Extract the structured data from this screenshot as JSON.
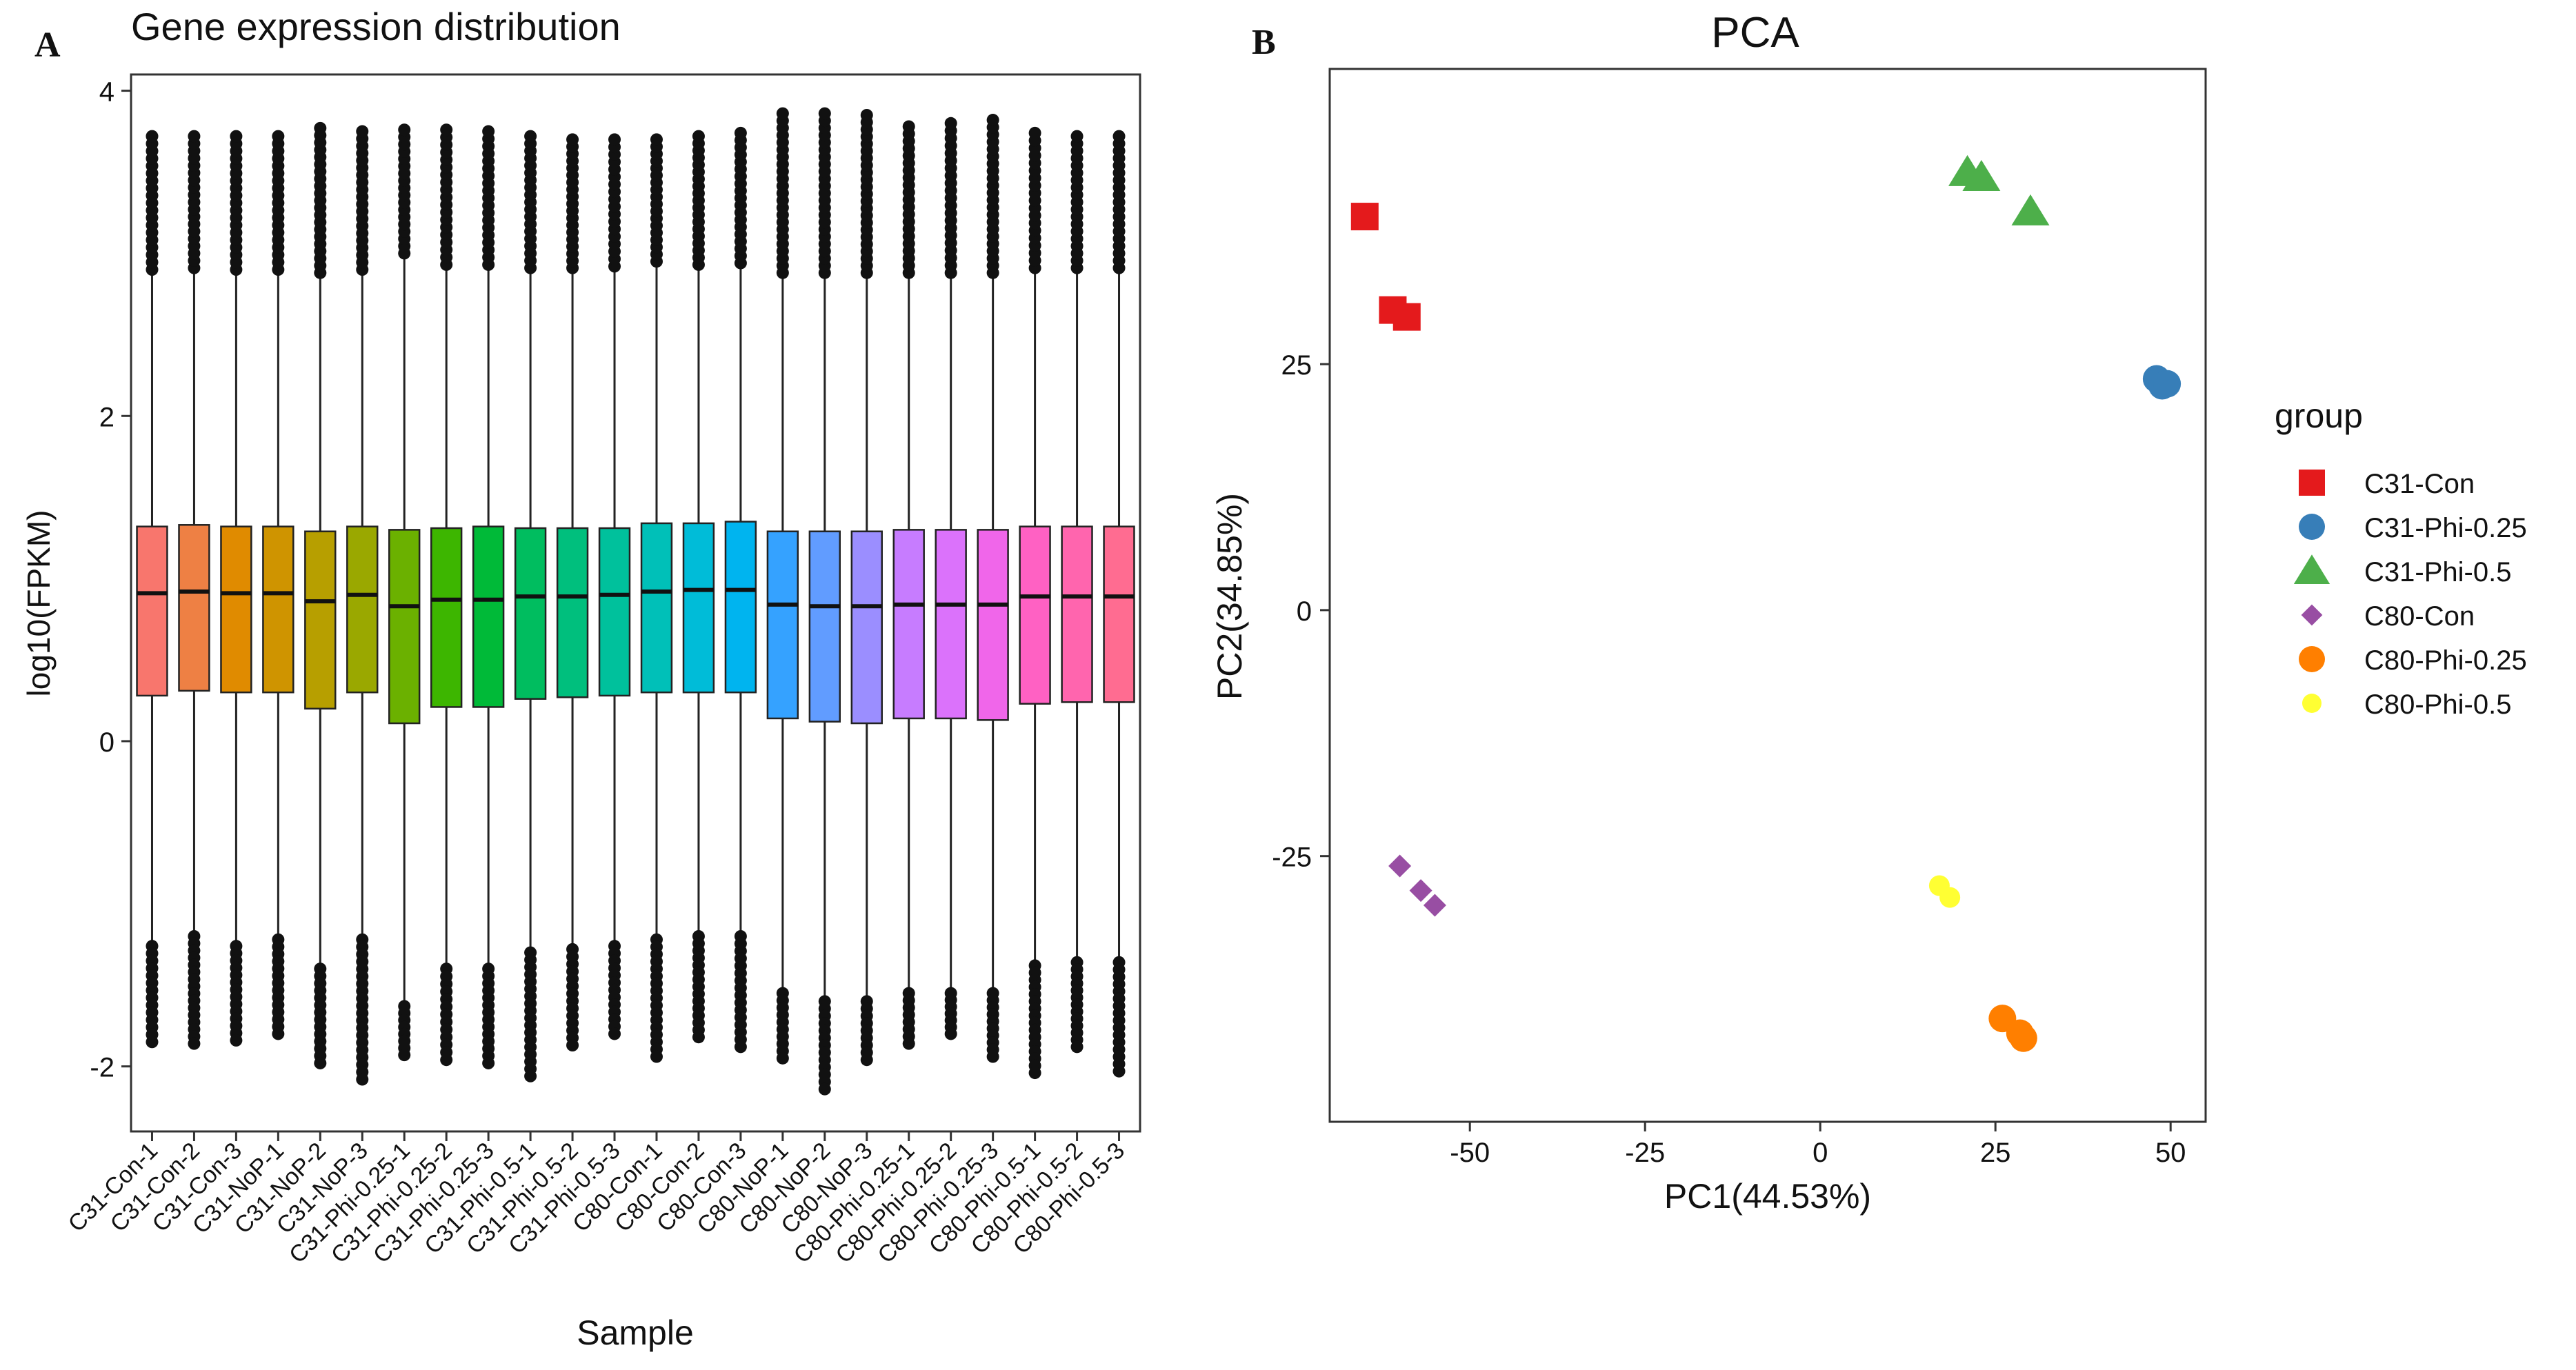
{
  "figure": {
    "panel_a_letter": "A",
    "panel_b_letter": "B"
  },
  "chart_data": [
    {
      "type": "box",
      "title": "Gene expression distribution",
      "xlabel": "Sample",
      "ylabel": "log10(FPKM)",
      "ylim": [
        -2.4,
        4.1
      ],
      "yticks": [
        "-2",
        "0",
        "2",
        "4"
      ],
      "ytick_values": [
        -2,
        0,
        2,
        4
      ],
      "categories": [
        "C31-Con-1",
        "C31-Con-2",
        "C31-Con-3",
        "C31-NoP-1",
        "C31-NoP-2",
        "C31-NoP-3",
        "C31-Phi-0.25-1",
        "C31-Phi-0.25-2",
        "C31-Phi-0.25-3",
        "C31-Phi-0.5-1",
        "C31-Phi-0.5-2",
        "C31-Phi-0.5-3",
        "C80-Con-1",
        "C80-Con-2",
        "C80-Con-3",
        "C80-NoP-1",
        "C80-NoP-2",
        "C80-NoP-3",
        "C80-Phi-0.25-1",
        "C80-Phi-0.25-2",
        "C80-Phi-0.25-3",
        "C80-Phi-0.5-1",
        "C80-Phi-0.5-2",
        "C80-Phi-0.5-3"
      ],
      "colors": [
        "#F8766D",
        "#EE8044",
        "#E08B00",
        "#CF9400",
        "#B79F00",
        "#9AA800",
        "#6BB100",
        "#3DB600",
        "#00BA38",
        "#00BD5F",
        "#00BF7D",
        "#00C19C",
        "#00C0B8",
        "#00BCD8",
        "#00B4EF",
        "#35A2FF",
        "#619CFF",
        "#9B8EFF",
        "#C77CFF",
        "#DB72FB",
        "#F066EA",
        "#FF61C3",
        "#FF65AE",
        "#FF6C91"
      ],
      "q1": [
        0.28,
        0.31,
        0.3,
        0.3,
        0.2,
        0.3,
        0.11,
        0.21,
        0.21,
        0.26,
        0.27,
        0.28,
        0.3,
        0.3,
        0.3,
        0.14,
        0.12,
        0.11,
        0.14,
        0.14,
        0.13,
        0.23,
        0.24,
        0.24
      ],
      "median": [
        0.91,
        0.92,
        0.91,
        0.91,
        0.86,
        0.9,
        0.83,
        0.87,
        0.87,
        0.89,
        0.89,
        0.9,
        0.92,
        0.93,
        0.93,
        0.84,
        0.83,
        0.83,
        0.84,
        0.84,
        0.84,
        0.89,
        0.89,
        0.89
      ],
      "q3": [
        1.32,
        1.33,
        1.32,
        1.32,
        1.29,
        1.32,
        1.3,
        1.31,
        1.32,
        1.31,
        1.31,
        1.31,
        1.34,
        1.34,
        1.35,
        1.29,
        1.29,
        1.29,
        1.3,
        1.3,
        1.3,
        1.32,
        1.32,
        1.32
      ],
      "whisker_low": [
        -1.26,
        -1.2,
        -1.26,
        -1.22,
        -1.4,
        -1.22,
        -1.63,
        -1.4,
        -1.4,
        -1.3,
        -1.28,
        -1.26,
        -1.22,
        -1.2,
        -1.2,
        -1.55,
        -1.6,
        -1.6,
        -1.55,
        -1.55,
        -1.55,
        -1.38,
        -1.36,
        -1.36
      ],
      "whisker_high": [
        2.9,
        2.91,
        2.9,
        2.9,
        2.88,
        2.9,
        3.0,
        2.93,
        2.93,
        2.91,
        2.91,
        2.92,
        2.95,
        2.93,
        2.94,
        2.88,
        2.88,
        2.88,
        2.88,
        2.88,
        2.88,
        2.91,
        2.91,
        2.91
      ],
      "max_outlier": [
        3.72,
        3.72,
        3.72,
        3.72,
        3.77,
        3.75,
        3.76,
        3.76,
        3.75,
        3.72,
        3.7,
        3.7,
        3.7,
        3.72,
        3.74,
        3.86,
        3.86,
        3.85,
        3.78,
        3.8,
        3.82,
        3.74,
        3.72,
        3.72
      ],
      "min_outlier": [
        -1.85,
        -1.86,
        -1.84,
        -1.8,
        -1.98,
        -2.08,
        -1.93,
        -1.96,
        -1.98,
        -2.06,
        -1.87,
        -1.8,
        -1.94,
        -1.82,
        -1.88,
        -1.95,
        -2.14,
        -1.96,
        -1.86,
        -1.8,
        -1.94,
        -2.04,
        -1.88,
        -2.03
      ]
    },
    {
      "type": "scatter",
      "title": "PCA",
      "xlabel": "PC1(44.53%)",
      "ylabel": "PC2(34.85%)",
      "xlim": [
        -70,
        55
      ],
      "ylim": [
        -52,
        55
      ],
      "xticks": [
        "-50",
        "-25",
        "0",
        "25",
        "50"
      ],
      "xtick_values": [
        -50,
        -25,
        0,
        25,
        50
      ],
      "yticks": [
        "-25",
        "0",
        "25"
      ],
      "ytick_values": [
        -25,
        0,
        25
      ],
      "legend_title": "group",
      "legend_position": "right",
      "series": [
        {
          "name": "C31-Con",
          "color": "#E41A1C",
          "shape": "square",
          "points": [
            [
              -65,
              40
            ],
            [
              -61,
              30.5
            ],
            [
              -59,
              29.8
            ]
          ]
        },
        {
          "name": "C31-Phi-0.25",
          "color": "#377EB8",
          "shape": "circle",
          "points": [
            [
              48,
              23.5
            ],
            [
              48.8,
              22.8
            ],
            [
              49.5,
              23
            ]
          ]
        },
        {
          "name": "C31-Phi-0.5",
          "color": "#4DAF4A",
          "shape": "triangle",
          "points": [
            [
              21,
              44.5
            ],
            [
              23,
              44
            ],
            [
              30,
              40.5
            ]
          ]
        },
        {
          "name": "C80-Con",
          "color": "#984EA3",
          "shape": "diamond",
          "points": [
            [
              -60,
              -26
            ],
            [
              -57,
              -28.5
            ],
            [
              -55,
              -30
            ]
          ]
        },
        {
          "name": "C80-Phi-0.25",
          "color": "#FF7F00",
          "shape": "circle",
          "points": [
            [
              26,
              -41.5
            ],
            [
              28.5,
              -43
            ],
            [
              29,
              -43.5
            ]
          ]
        },
        {
          "name": "C80-Phi-0.5",
          "color": "#FFFF33",
          "shape": "circle",
          "points": [
            [
              17,
              -28
            ],
            [
              18.5,
              -29.2
            ]
          ]
        }
      ]
    }
  ]
}
